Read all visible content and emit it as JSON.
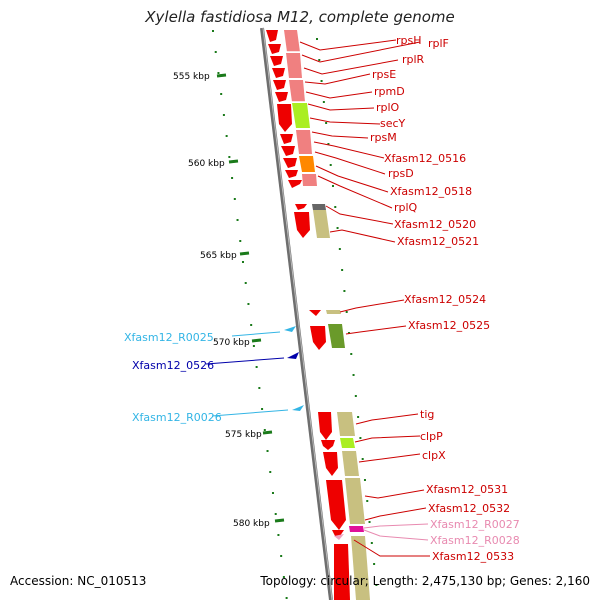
{
  "title": "Xylella fastidiosa M12, complete genome",
  "footer": {
    "accession": "Accession: NC_010513",
    "summary": "Topology: circular; Length: 2,475,130 bp; Genes: 2,160"
  },
  "colors": {
    "backbone": "#8a8a8a",
    "tick": "#1a7a1a",
    "gene_label": "#cc0000",
    "ncrna_label": "#33b5e5",
    "ncrna_dark_label": "#0000aa",
    "trna_label": "#e88ab0"
  },
  "scale_labels": [
    "555 kbp",
    "560 kbp",
    "565 kbp",
    "570 kbp",
    "575 kbp",
    "580 kbp"
  ],
  "right_labels": [
    "rpsH",
    "rplF",
    "rplR",
    "rpsE",
    "rpmD",
    "rplO",
    "secY",
    "rpsM",
    "Xfasm12_0516",
    "rpsD",
    "Xfasm12_0518",
    "rplQ",
    "Xfasm12_0520",
    "Xfasm12_0521",
    "Xfasm12_0524",
    "Xfasm12_0525",
    "tig",
    "clpP",
    "clpX",
    "Xfasm12_0531",
    "Xfasm12_0532",
    "Xfasm12_R0027",
    "Xfasm12_R0028",
    "Xfasm12_0533"
  ],
  "left_labels": [
    "Xfasm12_R0025",
    "Xfasm12_0526",
    "Xfasm12_R0026"
  ]
}
